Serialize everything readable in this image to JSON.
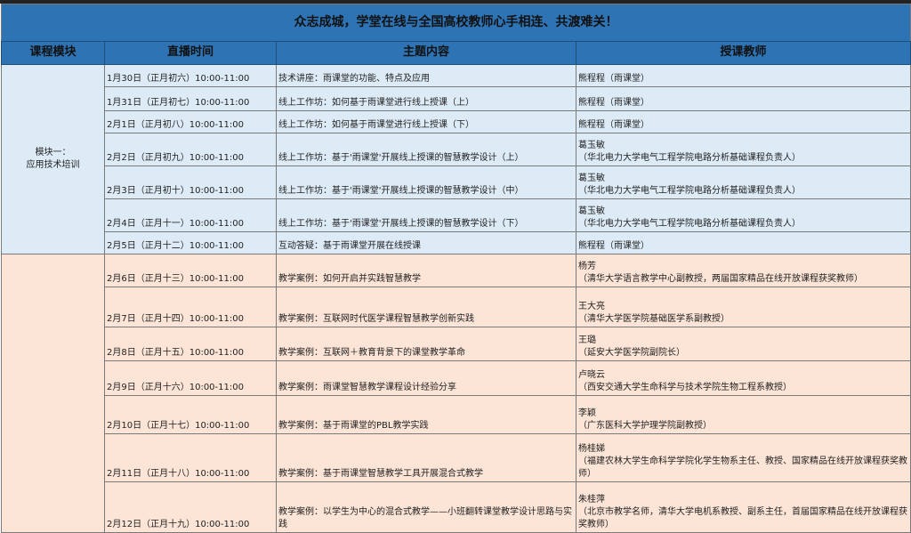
{
  "title": "众志成城，学堂在线与全国高校教师心手相连、共渡难关！",
  "headers": [
    "课程模块",
    "直播时间",
    "主题内容",
    "授课教师"
  ],
  "colors": {
    "header": "#2e74b5",
    "module1": "#ddebf7",
    "module2": "#fce4d6"
  },
  "module1": {
    "label": "模块一：\n应用技术培训"
  },
  "rows": [
    {
      "time": "1月30日（正月初六）10:00-11:00",
      "topic": "技术讲座：雨课堂的功能、特点及应用",
      "teacher": "熊程程（雨课堂）"
    },
    {
      "time": "1月31日（正月初七）10:00-11:00",
      "topic": "线上工作坊：如何基于雨课堂进行线上授课（上）",
      "teacher": "熊程程（雨课堂）"
    },
    {
      "time": "2月1日（正月初八）10:00-11:00",
      "topic": "线上工作坊：如何基于雨课堂进行线上授课（下）",
      "teacher": "熊程程（雨课堂）"
    },
    {
      "time": "2月2日（正月初九）10:00-11:00",
      "topic": "线上工作坊：基于'雨课堂'开展线上授课的智慧教学设计（上）",
      "teacher": "葛玉敏\n（华北电力大学电气工程学院电路分析基础课程负责人）"
    },
    {
      "time": "2月3日（正月初十）10:00-11:00",
      "topic": "线上工作坊：基于'雨课堂'开展线上授课的智慧教学设计（中）",
      "teacher": "葛玉敏\n（华北电力大学电气工程学院电路分析基础课程负责人）"
    },
    {
      "time": "2月4日（正月十一）10:00-11:00",
      "topic": "线上工作坊：基于'雨课堂'开展线上授课的智慧教学设计（下）",
      "teacher": "葛玉敏\n（华北电力大学电气工程学院电路分析基础课程负责人）"
    },
    {
      "time": "2月5日（正月十二）10:00-11:00",
      "topic": "互动答疑：基于雨课堂开展在线授课",
      "teacher": "熊程程（雨课堂）"
    },
    {
      "time": "2月6日（正月十三）10:00-11:00",
      "topic": "教学案例：如何开启并实践智慧教学",
      "teacher": "杨芳\n（清华大学语言教学中心副教授，两届国家精品在线开放课程获奖教师）"
    },
    {
      "time": "2月7日（正月十四）10:00-11:00",
      "topic": "教学案例：互联网时代医学课程智慧教学创新实践",
      "teacher": "王大亮\n（清华大学医学院基础医学系副教授）"
    },
    {
      "time": "2月8日（正月十五）10:00-11:00",
      "topic": "教学案例：互联网＋教育背景下的课堂教学革命",
      "teacher": "王璐\n（延安大学医学院副院长）"
    },
    {
      "time": "2月9日（正月十六）10:00-11:00",
      "topic": "教学案例：雨课堂智慧教学课程设计经验分享",
      "teacher": "卢晓云\n（西安交通大学生命科学与技术学院生物工程系教授）"
    },
    {
      "time": "2月10日（正月十七）10:00-11:00",
      "topic": "教学案例：基于雨课堂的PBL教学实践",
      "teacher": "李颖\n（广东医科大学护理学院副教授）"
    },
    {
      "time": "2月11日（正月十八）10:00-11:00",
      "topic": "教学案例：基于雨课堂智慧教学工具开展混合式教学",
      "teacher": "杨桂娣\n（福建农林大学生命科学学院化学生物系主任、教授、国家精品在线开放课程获奖教师）"
    },
    {
      "time": "2月12日（正月十九）10:00-11:00",
      "topic": "教学案例：以学生为中心的混合式教学——小班翻转课堂教学设计思路与实践",
      "teacher": "朱桂萍\n（北京市教学名师，清华大学电机系教授、副系主任，首届国家精品在线开放课程获奖教师）"
    }
  ]
}
